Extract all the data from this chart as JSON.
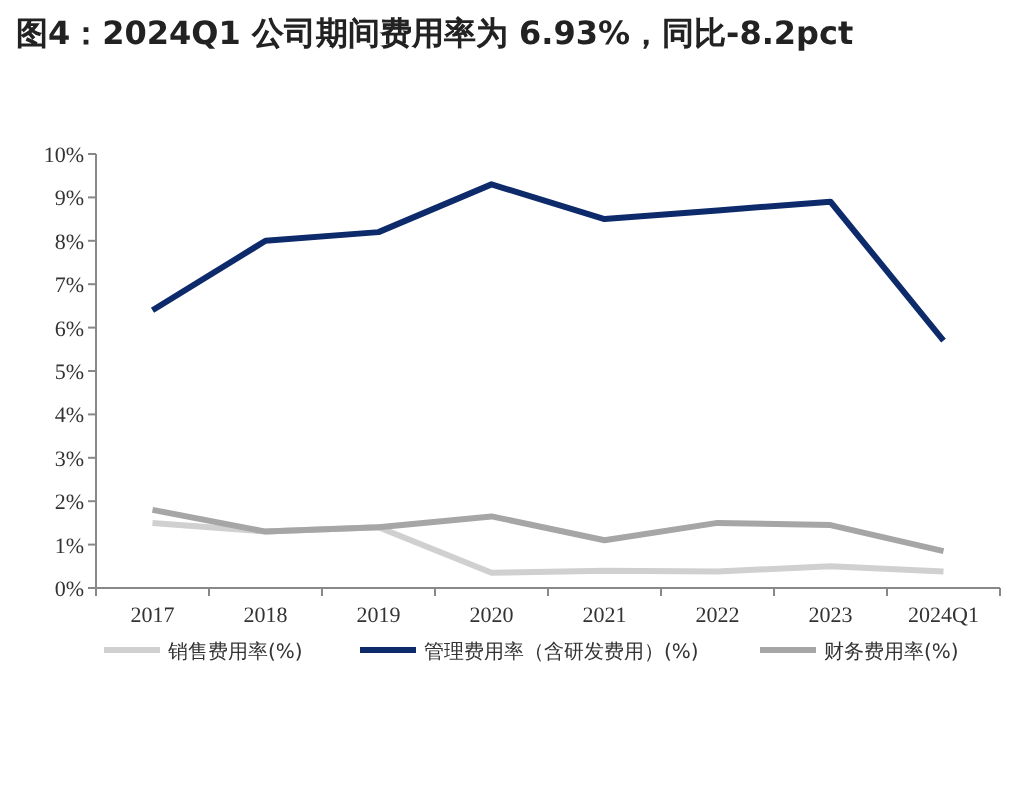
{
  "chart_data": {
    "type": "line",
    "title": "图4：2024Q1 公司期间费用率为 6.93%，同比-8.2pct",
    "categories": [
      "2017",
      "2018",
      "2019",
      "2020",
      "2021",
      "2022",
      "2023",
      "2024Q1"
    ],
    "series": [
      {
        "name": "销售费用率(%)",
        "color": "#d0d0d0",
        "values": [
          1.5,
          1.3,
          1.4,
          0.35,
          0.4,
          0.38,
          0.5,
          0.38
        ]
      },
      {
        "name": "管理费用率（含研发费用）(%)",
        "color": "#0d2a6b",
        "values": [
          6.4,
          8.0,
          8.2,
          9.3,
          8.5,
          8.7,
          8.9,
          5.7
        ]
      },
      {
        "name": "财务费用率(%)",
        "color": "#a6a6a6",
        "values": [
          1.8,
          1.3,
          1.4,
          1.65,
          1.1,
          1.5,
          1.45,
          0.85
        ]
      }
    ],
    "ylim": [
      0,
      10
    ],
    "yticks": [
      {
        "value": 0,
        "label": "0%"
      },
      {
        "value": 1,
        "label": "1%"
      },
      {
        "value": 2,
        "label": "2%"
      },
      {
        "value": 3,
        "label": "3%"
      },
      {
        "value": 4,
        "label": "4%"
      },
      {
        "value": 5,
        "label": "5%"
      },
      {
        "value": 6,
        "label": "6%"
      },
      {
        "value": 7,
        "label": "7%"
      },
      {
        "value": 8,
        "label": "8%"
      },
      {
        "value": 9,
        "label": "9%"
      },
      {
        "value": 10,
        "label": "10%"
      }
    ],
    "legend": "bottom",
    "grid": false,
    "marker": "none",
    "line_style": "solid"
  }
}
